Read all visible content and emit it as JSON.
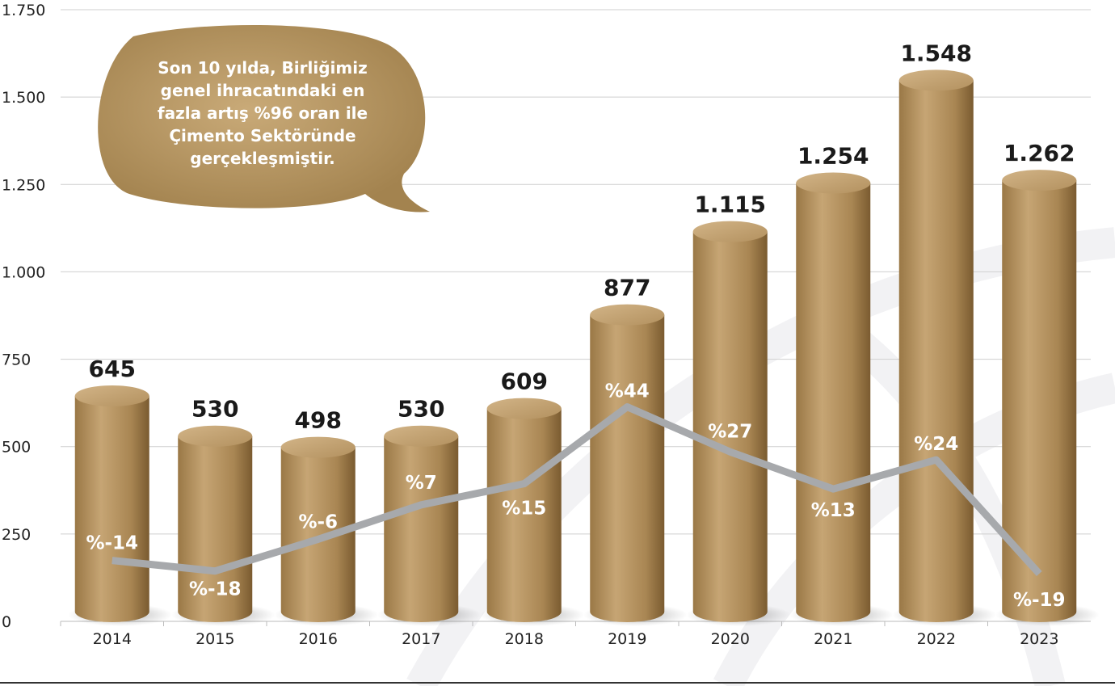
{
  "chart_data": {
    "type": "bar",
    "categories": [
      "2014",
      "2015",
      "2016",
      "2017",
      "2018",
      "2019",
      "2020",
      "2021",
      "2022",
      "2023"
    ],
    "series": [
      {
        "color": "#b08d5c",
        "values": [
          645,
          530,
          498,
          530,
          609,
          877,
          1115,
          1254,
          1548,
          1262
        ],
        "value_labels": [
          "645",
          "530",
          "498",
          "530",
          "609",
          "877",
          "1.115",
          "1.254",
          "1.548",
          "1.262"
        ]
      },
      {
        "type": "line",
        "axis": "y2",
        "color": "#a7a9ac",
        "values": [
          -14,
          -18,
          -6,
          7,
          15,
          44,
          27,
          13,
          24,
          -19
        ],
        "value_labels": [
          "%-14",
          "%-18",
          "%-6",
          "%7",
          "%15",
          "%44",
          "%27",
          "%13",
          "%24",
          "%-19"
        ]
      }
    ],
    "ylim": [
      0,
      1750
    ],
    "yticks": [
      0,
      250,
      500,
      750,
      {
        "value": 1000,
        "label": "1.000"
      },
      {
        "value": 1250,
        "label": "1.250"
      },
      {
        "value": 1500,
        "label": "1.500"
      },
      {
        "value": 1750,
        "label": "1.750"
      }
    ],
    "y2lim": [
      -37,
      194
    ],
    "grid": true,
    "annotation": [
      "Son 10 yılda, Birliğimiz",
      "genel ihracatındaki en",
      "fazla artış %96 oran ile",
      "Çimento Sektöründe",
      "gerçekleşmiştir."
    ]
  }
}
